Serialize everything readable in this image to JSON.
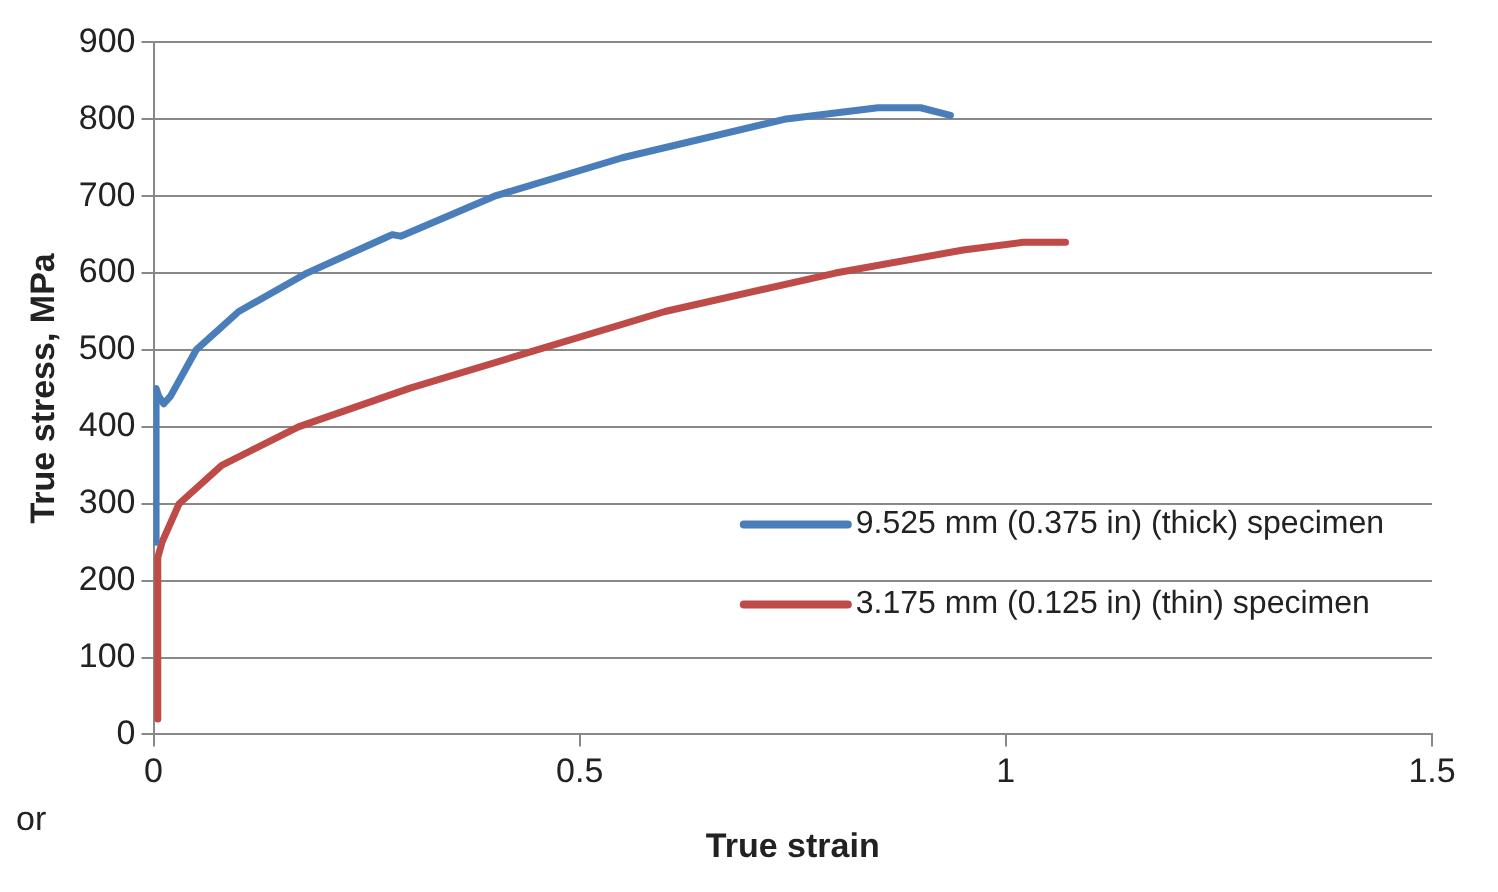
{
  "chart_data": {
    "type": "line",
    "xlabel": "True strain",
    "ylabel": "True stress, MPa",
    "xlim": [
      0,
      1.5
    ],
    "xticks": [
      0,
      0.5,
      1,
      1.5
    ],
    "ylim": [
      0,
      900
    ],
    "yticks": [
      0,
      100,
      200,
      300,
      400,
      500,
      600,
      700,
      800,
      900
    ],
    "grid": "y",
    "legend": "bottom right",
    "marker": "none",
    "line_style": "solid",
    "annotations": [
      "or"
    ],
    "series": [
      {
        "name": "9.525 mm (0.375 in) (thick) specimen",
        "color": "#4a7ebb",
        "x": [
          0.003,
          0.003,
          0.006,
          0.012,
          0.02,
          0.05,
          0.1,
          0.18,
          0.27,
          0.28,
          0.29,
          0.4,
          0.55,
          0.74,
          0.85,
          0.9,
          0.935
        ],
        "values": [
          250,
          450,
          440,
          430,
          440,
          500,
          550,
          600,
          645,
          650,
          648,
          700,
          750,
          800,
          815,
          815,
          805
        ]
      },
      {
        "name": "3.175 mm (0.125 in) (thin) specimen",
        "color": "#be4b48",
        "x": [
          0.005,
          0.005,
          0.01,
          0.03,
          0.08,
          0.17,
          0.3,
          0.45,
          0.6,
          0.8,
          0.95,
          1.02,
          1.07
        ],
        "values": [
          20,
          230,
          250,
          300,
          350,
          400,
          450,
          500,
          550,
          600,
          630,
          640,
          640
        ]
      }
    ]
  }
}
